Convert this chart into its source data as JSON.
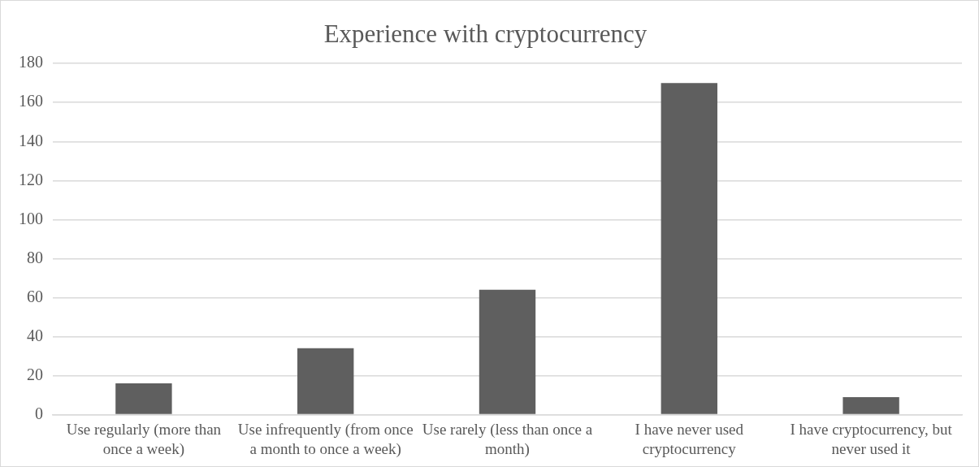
{
  "chart_data": {
    "type": "bar",
    "title": "Experience with cryptocurrency",
    "categories": [
      "Use regularly (more than once a week)",
      "Use infrequently (from once a month to once a week)",
      "Use rarely (less than once a month)",
      "I have never used cryptocurrency",
      "I have cryptocurrency, but never used it"
    ],
    "values": [
      16,
      34,
      64,
      170,
      9
    ],
    "color": "#5f5f5f",
    "ylim": [
      0,
      180
    ],
    "yticks": [
      0,
      20,
      40,
      60,
      80,
      100,
      120,
      140,
      160,
      180
    ],
    "grid": "y",
    "legend": false
  }
}
